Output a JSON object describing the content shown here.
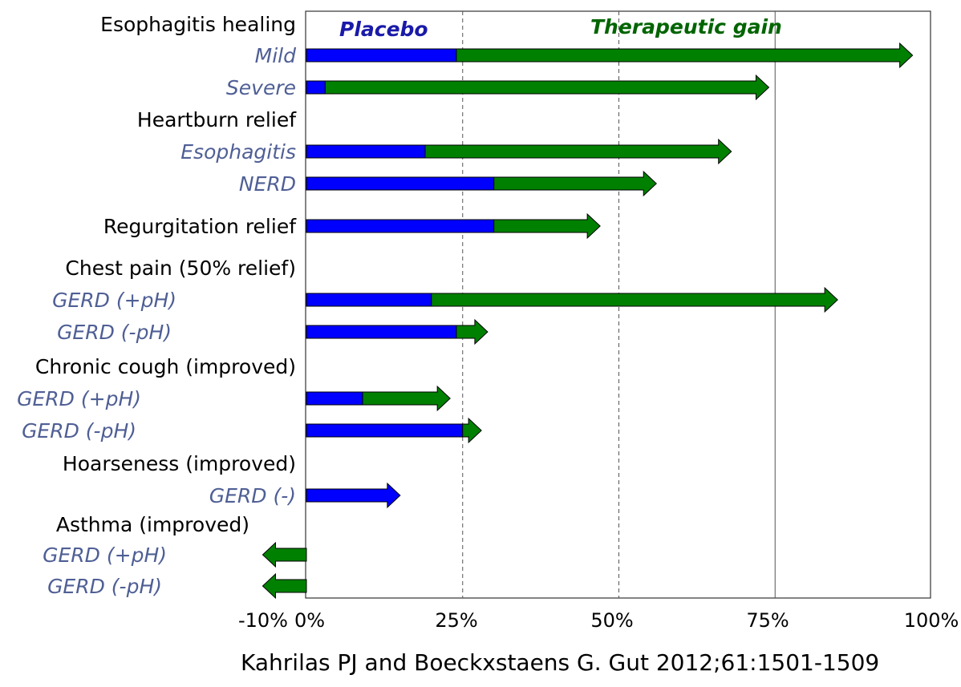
{
  "chart_data": {
    "type": "bar",
    "orientation": "horizontal",
    "header_placebo": "Placebo",
    "header_gain": "Therapeutic gain",
    "x_ticks": [
      "-10%",
      "0%",
      "25%",
      "50%",
      "75%",
      "100%"
    ],
    "x_tick_values": [
      -10,
      0,
      25,
      50,
      75,
      100
    ],
    "xlim": [
      -7,
      100
    ],
    "gridlines": [
      25,
      50,
      75
    ],
    "rows": [
      {
        "kind": "header",
        "label": "Esophagitis healing"
      },
      {
        "kind": "bar",
        "label": "Mild",
        "placebo": 24,
        "total": 97
      },
      {
        "kind": "bar",
        "label": "Severe",
        "placebo": 3,
        "total": 74
      },
      {
        "kind": "header",
        "label": "Heartburn relief"
      },
      {
        "kind": "bar",
        "label": "Esophagitis",
        "placebo": 19,
        "total": 68
      },
      {
        "kind": "bar",
        "label": "NERD",
        "placebo": 30,
        "total": 56
      },
      {
        "kind": "header",
        "label": "Regurgitation relief",
        "placebo": 30,
        "total": 47
      },
      {
        "kind": "header",
        "label": "Chest pain (50% relief)"
      },
      {
        "kind": "bar",
        "label": "GERD (+pH)",
        "placebo": 20,
        "total": 85
      },
      {
        "kind": "bar",
        "label": "GERD (-pH)",
        "placebo": 24,
        "total": 29
      },
      {
        "kind": "header",
        "label": "Chronic cough (improved)"
      },
      {
        "kind": "bar",
        "label": "GERD (+pH)",
        "placebo": 9,
        "total": 23
      },
      {
        "kind": "bar",
        "label": "GERD (-pH)",
        "placebo": 25,
        "total": 28
      },
      {
        "kind": "header",
        "label": "Hoarseness (improved)"
      },
      {
        "kind": "bar",
        "label": "GERD (-)",
        "placebo": 15,
        "total": 15
      },
      {
        "kind": "header",
        "label": "Asthma (improved)"
      },
      {
        "kind": "bar",
        "label": "GERD (+pH)",
        "placebo": 0,
        "total": -7
      },
      {
        "kind": "bar",
        "label": "GERD (-pH)",
        "placebo": 0,
        "total": -7
      }
    ],
    "colors": {
      "placebo": "#0000ff",
      "gain": "#008000",
      "gain_header": "#006400",
      "placebo_header": "#1a1aa8",
      "outline": "#000000",
      "grid": "#555555"
    }
  },
  "citation": "Kahrilas PJ and Boeckxstaens G. Gut 2012;61:1501-1509"
}
